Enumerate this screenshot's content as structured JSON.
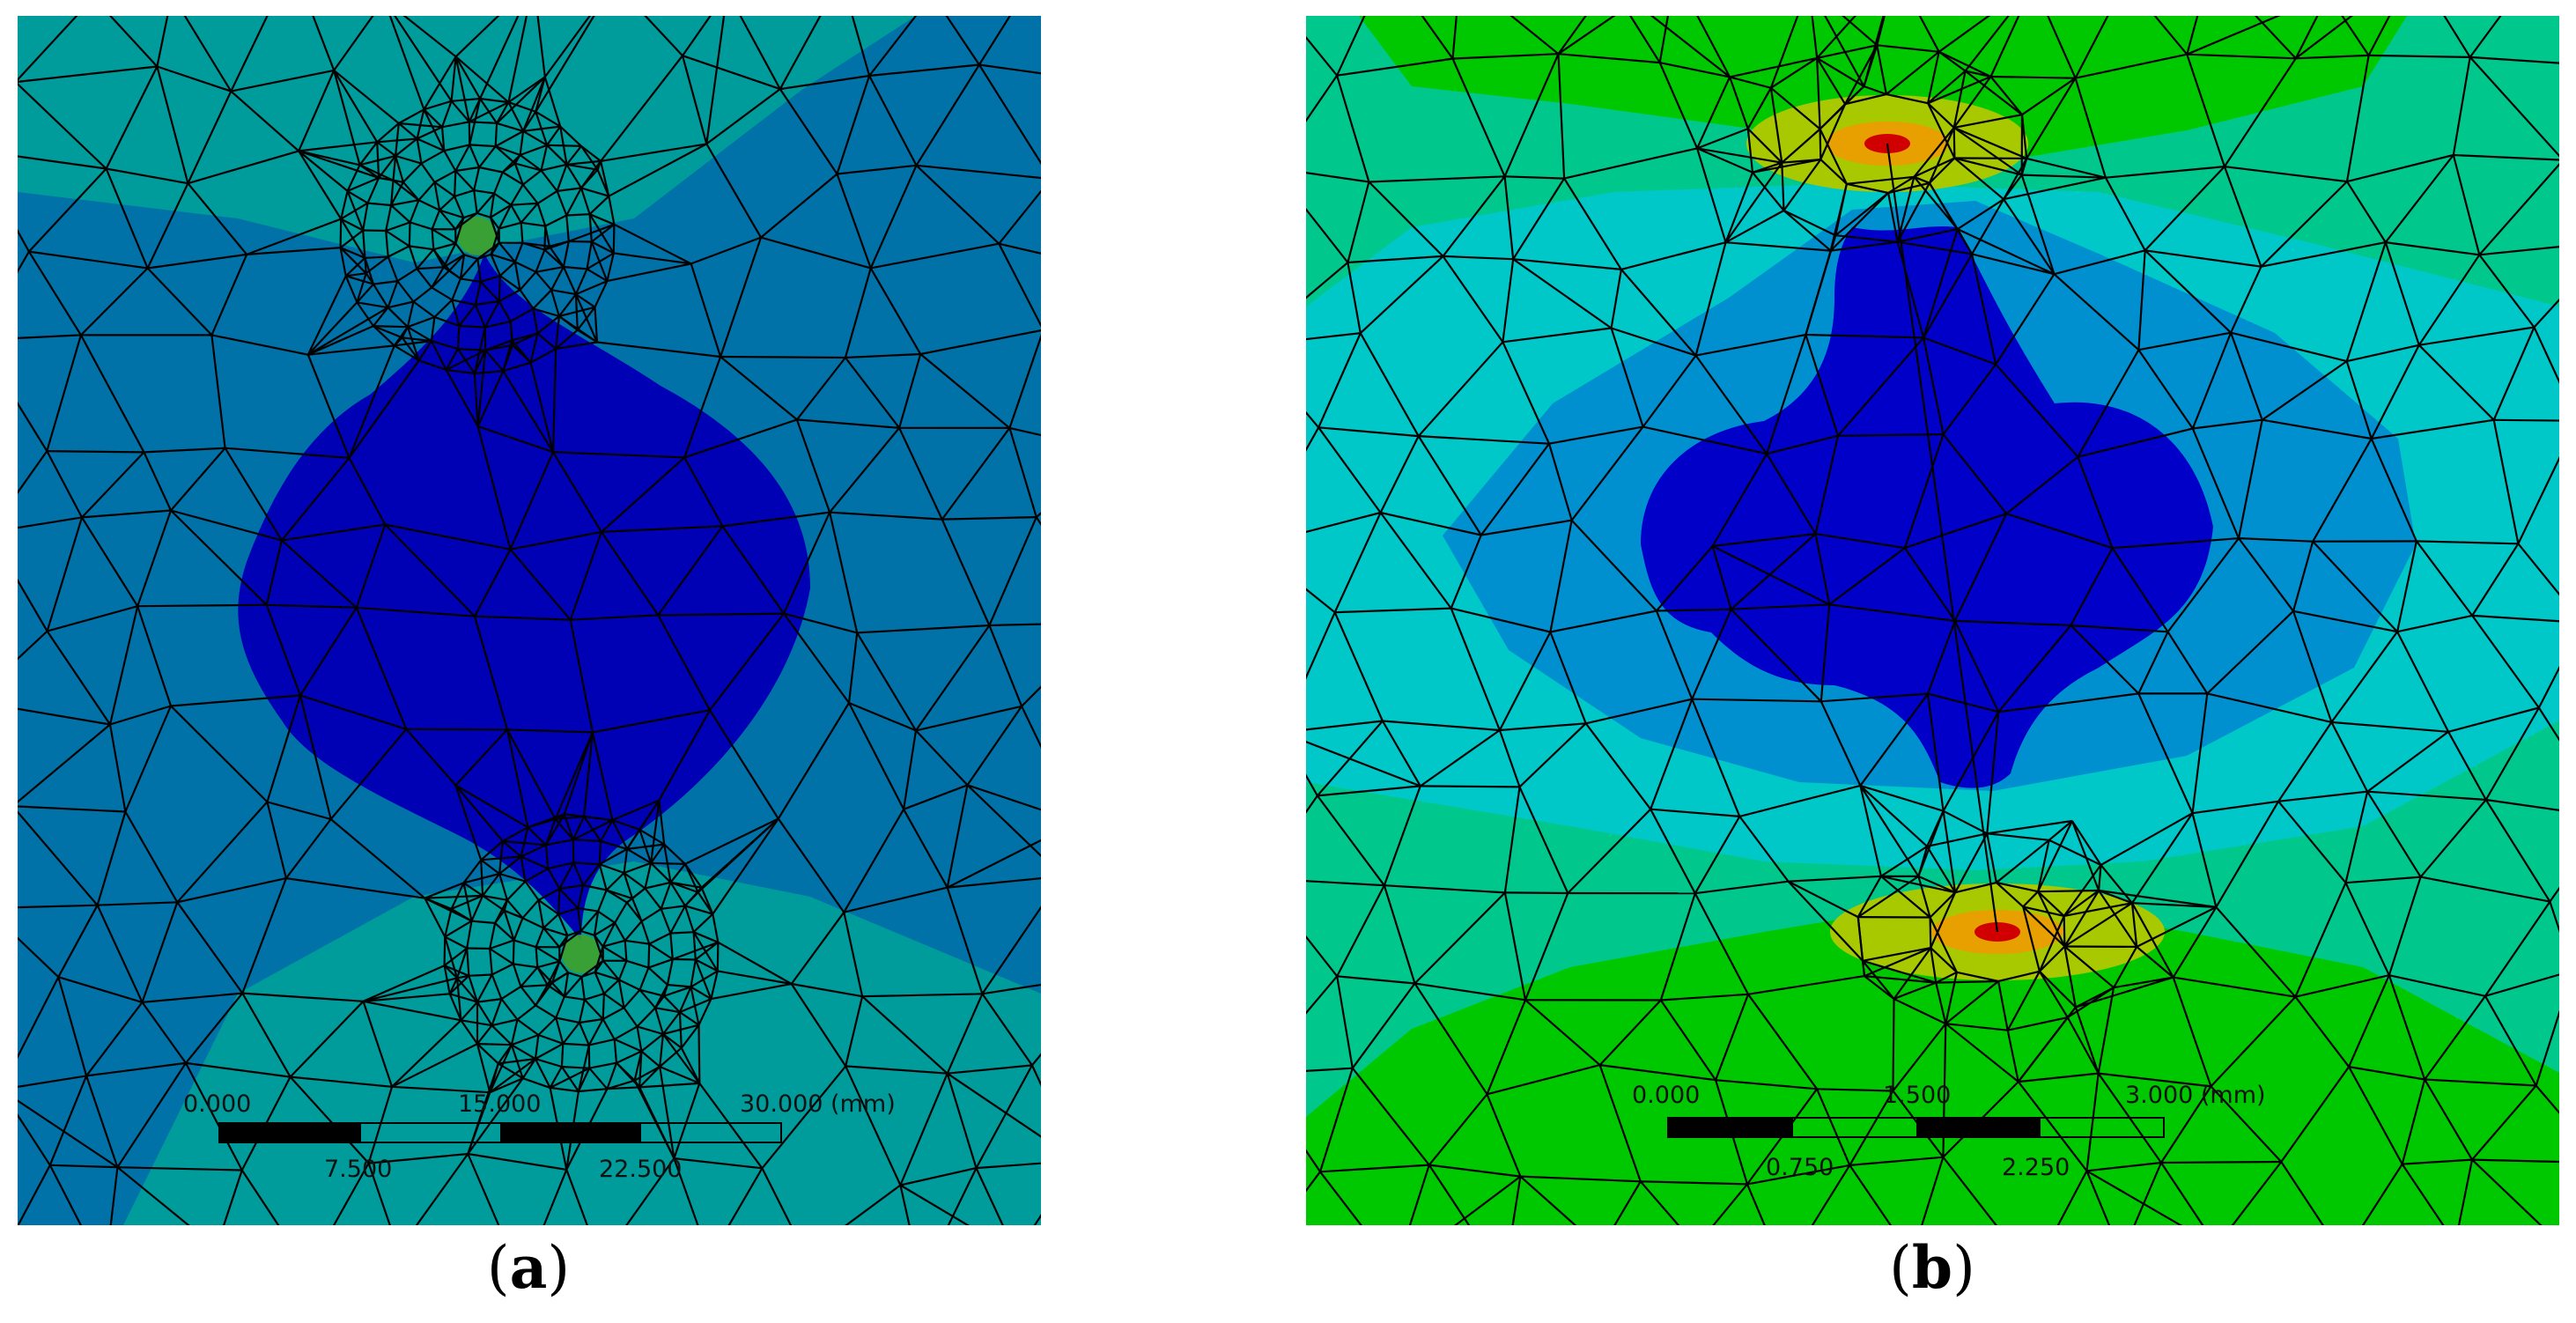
{
  "panels": [
    {
      "id": "a",
      "caption_open": "(",
      "caption_letter": "a",
      "caption_close": ")",
      "scale": {
        "top_labels": [
          "0.000",
          "15.000",
          "30.000 (mm)"
        ],
        "bottom_labels": [
          "7.500",
          "22.500"
        ]
      },
      "colors": {
        "background": "#009b9b",
        "region": "#0072a8",
        "core": "#0000b4",
        "hotspot": "#3fa12b"
      }
    },
    {
      "id": "b",
      "caption_open": "(",
      "caption_letter": "b",
      "caption_close": ")",
      "scale": {
        "top_labels": [
          "0.000",
          "1.500",
          "3.000 (mm)"
        ],
        "bottom_labels": [
          "0.750",
          "2.250"
        ]
      },
      "colors": {
        "background": "#00c800",
        "outer": "#00c88c",
        "mid": "#00c8c8",
        "inner": "#0090d0",
        "core": "#0000c8",
        "yellow": "#a8c800",
        "orange": "#e8a000",
        "red": "#d00000"
      }
    }
  ]
}
